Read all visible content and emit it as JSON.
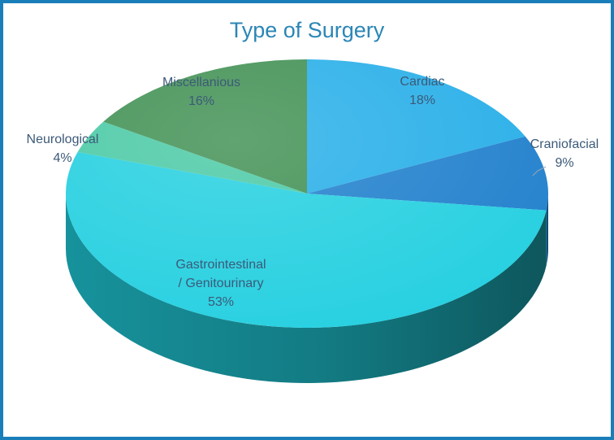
{
  "chart_data": {
    "type": "pie",
    "title": "Type of Surgery",
    "categories": [
      "Cardiac",
      "Craniofacial",
      "Gastrointestinal / Genitourinary",
      "Neurological",
      "Miscellanious"
    ],
    "values": [
      18,
      9,
      53,
      4,
      16
    ],
    "labels": [
      {
        "lines": [
          "Cardiac"
        ],
        "pct": "18%"
      },
      {
        "lines": [
          "Craniofacial"
        ],
        "pct": "9%"
      },
      {
        "lines": [
          "Gastrointestinal",
          "/ Genitourinary"
        ],
        "pct": "53%"
      },
      {
        "lines": [
          "Neurological"
        ],
        "pct": "4%"
      },
      {
        "lines": [
          "Miscellanious"
        ],
        "pct": "16%"
      }
    ],
    "colors": [
      "#26aee8",
      "#1f7fcc",
      "#22cfe0",
      "#48c9a4",
      "#3f8f52"
    ],
    "side_colors": [
      "#1789be",
      "#15609e",
      "#17959f",
      "#2f9479",
      "#2c6a3a"
    ],
    "start_angle": "12 o'clock",
    "direction": "clockwise",
    "style": "3d-tilted"
  }
}
